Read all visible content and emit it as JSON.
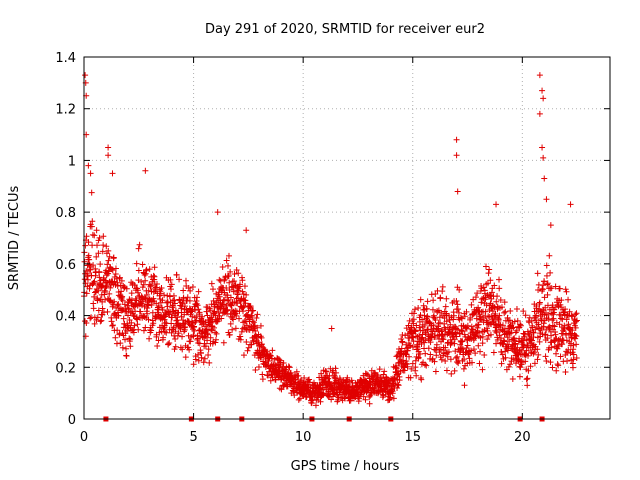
{
  "chart_data": {
    "type": "scatter",
    "title": "Day 291 of 2020, SRMTID for receiver eur2",
    "xlabel": "GPS time / hours",
    "ylabel": "SRMTID / TECUs",
    "xlim": [
      0,
      24
    ],
    "ylim": [
      0,
      1.4
    ],
    "x_ticks": [
      "0",
      "5",
      "10",
      "15",
      "20"
    ],
    "y_ticks": [
      "0",
      "0.2",
      "0.4",
      "0.6",
      "0.8",
      "1",
      "1.2",
      "1.4"
    ],
    "grid": true,
    "marker": "+",
    "color": "#e00000",
    "series": [
      {
        "name": "SRMTID",
        "envelope": {
          "x": [
            0.0,
            0.3,
            0.6,
            1.0,
            1.5,
            2.0,
            2.5,
            3.0,
            3.5,
            4.0,
            4.5,
            5.0,
            5.5,
            6.0,
            6.5,
            7.0,
            7.5,
            8.0,
            8.5,
            9.0,
            9.5,
            10.0,
            10.5,
            11.0,
            11.5,
            12.0,
            12.5,
            13.0,
            13.5,
            14.0,
            14.5,
            15.0,
            15.5,
            16.0,
            16.5,
            17.0,
            17.5,
            18.0,
            18.5,
            19.0,
            19.5,
            20.0,
            20.5,
            21.0,
            21.5,
            22.0,
            22.5
          ],
          "y": [
            0.55,
            0.6,
            0.5,
            0.55,
            0.45,
            0.4,
            0.48,
            0.45,
            0.42,
            0.4,
            0.4,
            0.38,
            0.32,
            0.42,
            0.48,
            0.45,
            0.38,
            0.28,
            0.2,
            0.17,
            0.14,
            0.12,
            0.1,
            0.14,
            0.13,
            0.11,
            0.12,
            0.13,
            0.15,
            0.1,
            0.25,
            0.3,
            0.32,
            0.35,
            0.33,
            0.35,
            0.3,
            0.38,
            0.45,
            0.35,
            0.3,
            0.28,
            0.3,
            0.42,
            0.38,
            0.35,
            0.3
          ]
        },
        "spread": [
          0.3,
          0.3,
          0.28,
          0.25,
          0.22,
          0.2,
          0.22,
          0.2,
          0.18,
          0.18,
          0.18,
          0.18,
          0.16,
          0.18,
          0.18,
          0.18,
          0.16,
          0.12,
          0.08,
          0.07,
          0.06,
          0.06,
          0.06,
          0.07,
          0.08,
          0.06,
          0.06,
          0.07,
          0.08,
          0.06,
          0.12,
          0.15,
          0.18,
          0.2,
          0.18,
          0.22,
          0.18,
          0.2,
          0.22,
          0.2,
          0.15,
          0.15,
          0.18,
          0.25,
          0.2,
          0.18,
          0.15
        ],
        "outliers": [
          {
            "x": 0.05,
            "y": 1.33
          },
          {
            "x": 0.08,
            "y": 1.3
          },
          {
            "x": 0.1,
            "y": 1.25
          },
          {
            "x": 0.1,
            "y": 1.1
          },
          {
            "x": 0.2,
            "y": 0.98
          },
          {
            "x": 0.3,
            "y": 0.95
          },
          {
            "x": 1.1,
            "y": 1.05
          },
          {
            "x": 1.1,
            "y": 1.02
          },
          {
            "x": 1.3,
            "y": 0.95
          },
          {
            "x": 2.8,
            "y": 0.96
          },
          {
            "x": 6.1,
            "y": 0.8
          },
          {
            "x": 7.4,
            "y": 0.73
          },
          {
            "x": 11.3,
            "y": 0.35
          },
          {
            "x": 17.0,
            "y": 1.08
          },
          {
            "x": 17.0,
            "y": 1.02
          },
          {
            "x": 17.05,
            "y": 0.88
          },
          {
            "x": 18.8,
            "y": 0.83
          },
          {
            "x": 20.8,
            "y": 1.33
          },
          {
            "x": 20.9,
            "y": 1.27
          },
          {
            "x": 20.95,
            "y": 1.24
          },
          {
            "x": 20.8,
            "y": 1.18
          },
          {
            "x": 20.9,
            "y": 1.05
          },
          {
            "x": 20.95,
            "y": 1.01
          },
          {
            "x": 21.0,
            "y": 0.93
          },
          {
            "x": 21.1,
            "y": 0.85
          },
          {
            "x": 21.3,
            "y": 0.75
          },
          {
            "x": 22.2,
            "y": 0.83
          }
        ],
        "zero_marks_x": [
          1.0,
          4.9,
          6.1,
          7.2,
          10.4,
          12.1,
          14.0,
          19.9,
          20.9
        ]
      }
    ]
  }
}
